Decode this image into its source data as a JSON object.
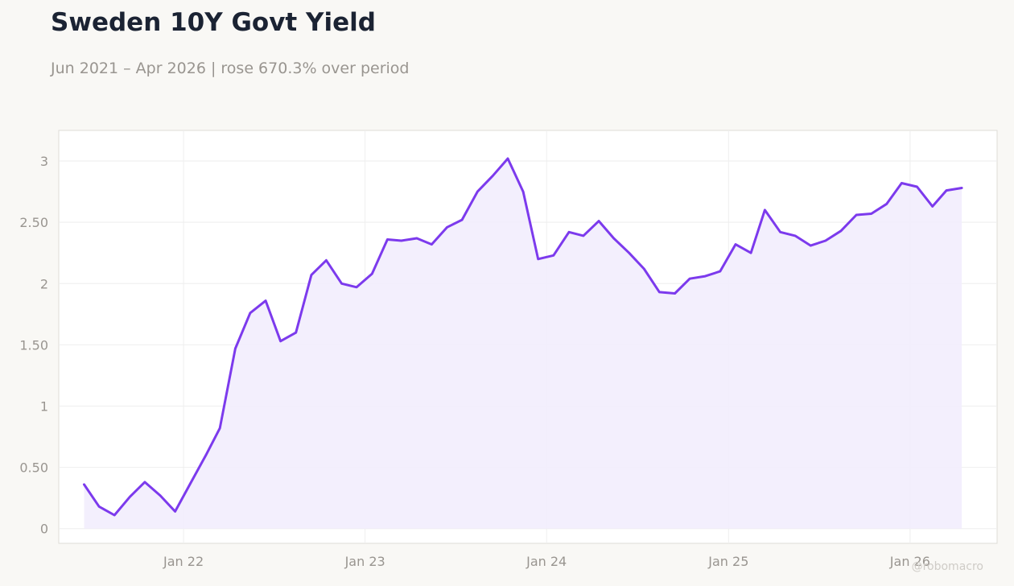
{
  "title": "Sweden 10Y Govt Yield",
  "subtitle": "Jun 2021 – Apr 2026 | rose 670.3% over period",
  "watermark": "@robomacro",
  "colors": {
    "line": "#7c3aed",
    "fill": "#f2edfd",
    "grid": "#eeeeee",
    "axis_text": "#999590",
    "plot_border": "#dedcd7",
    "plot_bg": "#ffffff"
  },
  "chart_data": {
    "type": "area",
    "xlabel": "",
    "ylabel": "",
    "grid": true,
    "ylim": [
      -0.12,
      3.25
    ],
    "xlim": [
      "2021-04-25",
      "2026-06-25"
    ],
    "x_ticks": [
      {
        "date": "2022-01-01",
        "label": "Jan 22"
      },
      {
        "date": "2023-01-01",
        "label": "Jan 23"
      },
      {
        "date": "2024-01-01",
        "label": "Jan 24"
      },
      {
        "date": "2025-01-01",
        "label": "Jan 25"
      },
      {
        "date": "2026-01-01",
        "label": "Jan 26"
      }
    ],
    "y_ticks": [
      {
        "value": 0,
        "label": "0"
      },
      {
        "value": 0.5,
        "label": "0.50"
      },
      {
        "value": 1,
        "label": "1"
      },
      {
        "value": 1.5,
        "label": "1.50"
      },
      {
        "value": 2,
        "label": "2"
      },
      {
        "value": 2.5,
        "label": "2.50"
      },
      {
        "value": 3,
        "label": "3"
      }
    ],
    "series": [
      {
        "name": "",
        "x": [
          "2021-06",
          "2021-07",
          "2021-08",
          "2021-09",
          "2021-10",
          "2021-11",
          "2021-12",
          "2022-01",
          "2022-02",
          "2022-03",
          "2022-04",
          "2022-05",
          "2022-06",
          "2022-07",
          "2022-08",
          "2022-09",
          "2022-10",
          "2022-11",
          "2022-12",
          "2023-01",
          "2023-02",
          "2023-03",
          "2023-04",
          "2023-05",
          "2023-06",
          "2023-07",
          "2023-08",
          "2023-09",
          "2023-10",
          "2023-11",
          "2023-12",
          "2024-01",
          "2024-02",
          "2024-03",
          "2024-04",
          "2024-05",
          "2024-06",
          "2024-07",
          "2024-08",
          "2024-09",
          "2024-10",
          "2024-11",
          "2024-12",
          "2025-01",
          "2025-02",
          "2025-03",
          "2025-04",
          "2025-05",
          "2025-06",
          "2025-07",
          "2025-08",
          "2025-09",
          "2025-10",
          "2025-11",
          "2025-12",
          "2026-01",
          "2026-02",
          "2026-03",
          "2026-04"
        ],
        "values": [
          0.36,
          0.18,
          0.11,
          0.26,
          0.38,
          0.27,
          0.14,
          0.37,
          0.6,
          0.82,
          1.47,
          1.76,
          1.86,
          1.53,
          1.6,
          2.07,
          2.19,
          2.0,
          1.97,
          2.08,
          2.36,
          2.35,
          2.37,
          2.32,
          2.46,
          2.52,
          2.75,
          2.88,
          3.02,
          2.75,
          2.2,
          2.23,
          2.42,
          2.39,
          2.51,
          2.37,
          2.25,
          2.12,
          1.93,
          1.92,
          2.04,
          2.06,
          2.1,
          2.32,
          2.25,
          2.6,
          2.42,
          2.39,
          2.31,
          2.35,
          2.43,
          2.56,
          2.57,
          2.65,
          2.82,
          2.79,
          2.63,
          2.76,
          2.78
        ]
      }
    ]
  }
}
